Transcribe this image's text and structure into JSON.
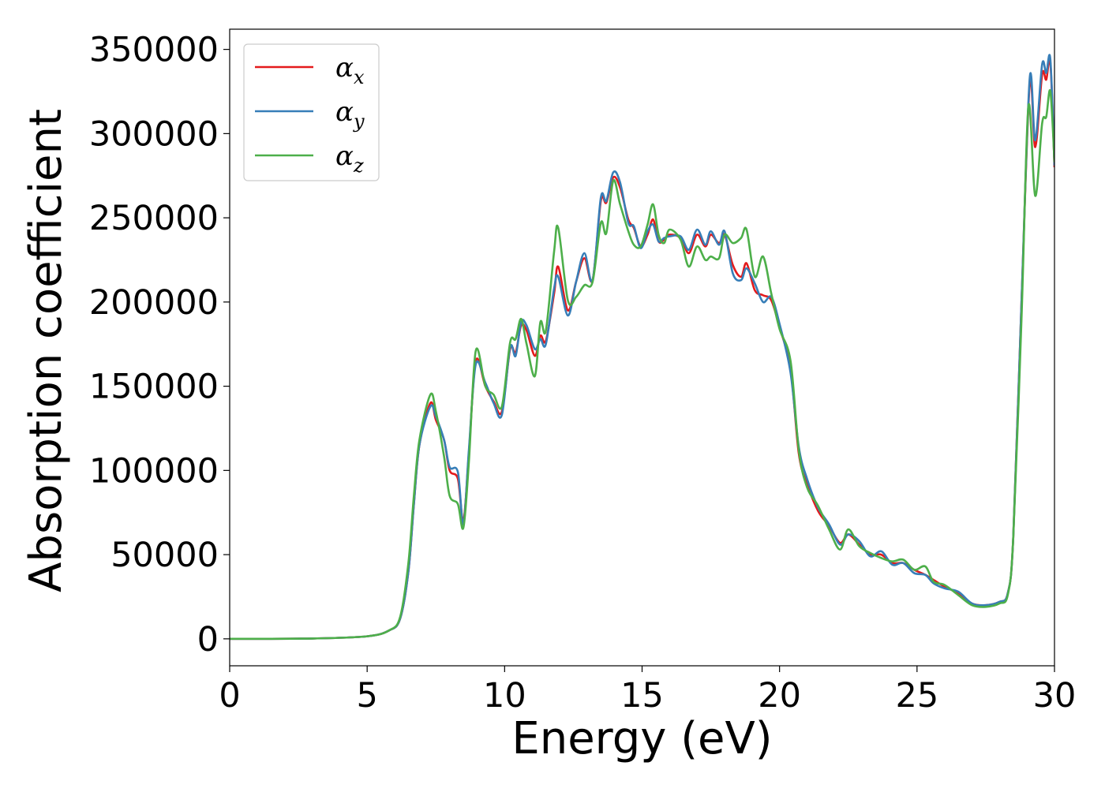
{
  "chart_data": {
    "type": "line",
    "title": "",
    "xlabel": "Energy (eV)",
    "ylabel": "Absorption coefficient",
    "xlim": [
      0,
      30
    ],
    "ylim": [
      -16000,
      362000
    ],
    "x_ticks": [
      0,
      5,
      10,
      15,
      20,
      25,
      30
    ],
    "x_tick_labels": [
      "0",
      "5",
      "10",
      "15",
      "20",
      "25",
      "30"
    ],
    "y_ticks": [
      0,
      50000,
      100000,
      150000,
      200000,
      250000,
      300000,
      350000
    ],
    "y_tick_labels": [
      "0",
      "50000",
      "100000",
      "150000",
      "200000",
      "250000",
      "300000",
      "350000"
    ],
    "grid": false,
    "legend_position": "top-left",
    "series": [
      {
        "name": "α",
        "subscript": "x",
        "color": "#e41a1c",
        "points": [
          [
            0,
            0
          ],
          [
            3,
            200
          ],
          [
            5,
            1500
          ],
          [
            5.8,
            5000
          ],
          [
            6.2,
            12000
          ],
          [
            6.5,
            40000
          ],
          [
            6.7,
            80000
          ],
          [
            6.9,
            115000
          ],
          [
            7.3,
            140000
          ],
          [
            7.5,
            130000
          ],
          [
            7.8,
            118000
          ],
          [
            8,
            100000
          ],
          [
            8.3,
            95000
          ],
          [
            8.5,
            70000
          ],
          [
            8.7,
            110000
          ],
          [
            8.95,
            165000
          ],
          [
            9.3,
            150000
          ],
          [
            9.6,
            141000
          ],
          [
            9.9,
            135000
          ],
          [
            10.2,
            172000
          ],
          [
            10.4,
            170000
          ],
          [
            10.6,
            186000
          ],
          [
            10.8,
            183000
          ],
          [
            11.1,
            168000
          ],
          [
            11.3,
            180000
          ],
          [
            11.5,
            177000
          ],
          [
            11.8,
            205000
          ],
          [
            11.95,
            221000
          ],
          [
            12.3,
            195000
          ],
          [
            12.6,
            212000
          ],
          [
            12.9,
            226000
          ],
          [
            13.2,
            213000
          ],
          [
            13.5,
            260000
          ],
          [
            13.7,
            259000
          ],
          [
            13.95,
            274000
          ],
          [
            14.2,
            268000
          ],
          [
            14.5,
            249000
          ],
          [
            14.7,
            244000
          ],
          [
            14.95,
            233000
          ],
          [
            15.2,
            240000
          ],
          [
            15.4,
            249000
          ],
          [
            15.6,
            236000
          ],
          [
            15.8,
            237000
          ],
          [
            16,
            240000
          ],
          [
            16.4,
            238000
          ],
          [
            16.7,
            229000
          ],
          [
            17,
            240000
          ],
          [
            17.3,
            233000
          ],
          [
            17.5,
            240000
          ],
          [
            17.8,
            235000
          ],
          [
            18,
            240000
          ],
          [
            18.3,
            222000
          ],
          [
            18.6,
            215000
          ],
          [
            18.8,
            223000
          ],
          [
            19.1,
            207000
          ],
          [
            19.4,
            204000
          ],
          [
            19.7,
            201000
          ],
          [
            20,
            185000
          ],
          [
            20.4,
            160000
          ],
          [
            20.7,
            110000
          ],
          [
            21,
            92000
          ],
          [
            21.4,
            76000
          ],
          [
            21.8,
            67000
          ],
          [
            22.2,
            57000
          ],
          [
            22.5,
            62000
          ],
          [
            22.9,
            56000
          ],
          [
            23.3,
            50000
          ],
          [
            23.7,
            50000
          ],
          [
            24.1,
            45000
          ],
          [
            24.5,
            45000
          ],
          [
            24.9,
            41000
          ],
          [
            25.3,
            38000
          ],
          [
            25.6,
            35000
          ],
          [
            26,
            31000
          ],
          [
            26.5,
            27000
          ],
          [
            27,
            21000
          ],
          [
            27.5,
            20000
          ],
          [
            28,
            22000
          ],
          [
            28.3,
            27000
          ],
          [
            28.5,
            60000
          ],
          [
            28.8,
            200000
          ],
          [
            29.1,
            330000
          ],
          [
            29.3,
            292000
          ],
          [
            29.55,
            335000
          ],
          [
            29.7,
            332000
          ],
          [
            29.85,
            342000
          ],
          [
            30,
            280000
          ]
        ]
      },
      {
        "name": "α",
        "subscript": "y",
        "color": "#377eb8",
        "points": [
          [
            0,
            0
          ],
          [
            3,
            200
          ],
          [
            5,
            1500
          ],
          [
            5.8,
            5000
          ],
          [
            6.2,
            12000
          ],
          [
            6.5,
            40000
          ],
          [
            6.7,
            80000
          ],
          [
            6.9,
            115000
          ],
          [
            7.3,
            138000
          ],
          [
            7.5,
            132000
          ],
          [
            7.8,
            118000
          ],
          [
            8,
            102000
          ],
          [
            8.3,
            99000
          ],
          [
            8.5,
            68000
          ],
          [
            8.7,
            112000
          ],
          [
            8.95,
            163000
          ],
          [
            9.3,
            152000
          ],
          [
            9.6,
            140000
          ],
          [
            9.9,
            133000
          ],
          [
            10.2,
            173000
          ],
          [
            10.4,
            168000
          ],
          [
            10.6,
            188000
          ],
          [
            10.8,
            186000
          ],
          [
            11.1,
            172000
          ],
          [
            11.3,
            178000
          ],
          [
            11.5,
            175000
          ],
          [
            11.8,
            208000
          ],
          [
            11.95,
            215000
          ],
          [
            12.3,
            192000
          ],
          [
            12.6,
            212000
          ],
          [
            12.9,
            229000
          ],
          [
            13.2,
            213000
          ],
          [
            13.5,
            262000
          ],
          [
            13.7,
            260000
          ],
          [
            13.95,
            277000
          ],
          [
            14.2,
            271000
          ],
          [
            14.5,
            247000
          ],
          [
            14.7,
            245000
          ],
          [
            14.95,
            232000
          ],
          [
            15.2,
            242000
          ],
          [
            15.4,
            246000
          ],
          [
            15.6,
            236000
          ],
          [
            15.8,
            238000
          ],
          [
            16,
            239000
          ],
          [
            16.4,
            239000
          ],
          [
            16.7,
            231000
          ],
          [
            17,
            243000
          ],
          [
            17.3,
            234000
          ],
          [
            17.5,
            242000
          ],
          [
            17.8,
            234000
          ],
          [
            18,
            242000
          ],
          [
            18.3,
            217000
          ],
          [
            18.6,
            213000
          ],
          [
            18.8,
            220000
          ],
          [
            19.1,
            211000
          ],
          [
            19.4,
            200000
          ],
          [
            19.7,
            203000
          ],
          [
            20,
            187000
          ],
          [
            20.4,
            158000
          ],
          [
            20.7,
            114000
          ],
          [
            21,
            95000
          ],
          [
            21.4,
            78000
          ],
          [
            21.8,
            68000
          ],
          [
            22.2,
            56000
          ],
          [
            22.5,
            62000
          ],
          [
            22.9,
            58000
          ],
          [
            23.3,
            49000
          ],
          [
            23.7,
            52000
          ],
          [
            24.1,
            44000
          ],
          [
            24.5,
            45000
          ],
          [
            24.9,
            39000
          ],
          [
            25.3,
            38000
          ],
          [
            25.6,
            33000
          ],
          [
            26,
            30000
          ],
          [
            26.5,
            28000
          ],
          [
            27,
            21000
          ],
          [
            27.5,
            20000
          ],
          [
            28,
            22000
          ],
          [
            28.3,
            27000
          ],
          [
            28.5,
            60000
          ],
          [
            28.8,
            200000
          ],
          [
            29.1,
            333000
          ],
          [
            29.3,
            296000
          ],
          [
            29.55,
            341000
          ],
          [
            29.7,
            336000
          ],
          [
            29.85,
            344000
          ],
          [
            30,
            281000
          ]
        ]
      },
      {
        "name": "α",
        "subscript": "z",
        "color": "#4daf4a",
        "points": [
          [
            0,
            0
          ],
          [
            3,
            200
          ],
          [
            5,
            1500
          ],
          [
            5.8,
            5000
          ],
          [
            6.2,
            13000
          ],
          [
            6.5,
            45000
          ],
          [
            6.7,
            85000
          ],
          [
            6.9,
            118000
          ],
          [
            7.3,
            145000
          ],
          [
            7.5,
            135000
          ],
          [
            7.8,
            108000
          ],
          [
            8,
            85000
          ],
          [
            8.3,
            80000
          ],
          [
            8.5,
            66000
          ],
          [
            8.7,
            105000
          ],
          [
            8.95,
            171000
          ],
          [
            9.3,
            150000
          ],
          [
            9.6,
            145000
          ],
          [
            9.9,
            138000
          ],
          [
            10.2,
            176000
          ],
          [
            10.4,
            178000
          ],
          [
            10.6,
            190000
          ],
          [
            10.8,
            175000
          ],
          [
            11.1,
            156000
          ],
          [
            11.3,
            188000
          ],
          [
            11.5,
            183000
          ],
          [
            11.8,
            230000
          ],
          [
            11.95,
            244000
          ],
          [
            12.3,
            201000
          ],
          [
            12.6,
            203000
          ],
          [
            12.9,
            210000
          ],
          [
            13.2,
            212000
          ],
          [
            13.5,
            247000
          ],
          [
            13.7,
            241000
          ],
          [
            13.95,
            272000
          ],
          [
            14.2,
            258000
          ],
          [
            14.5,
            242000
          ],
          [
            14.7,
            234000
          ],
          [
            14.95,
            233000
          ],
          [
            15.2,
            246000
          ],
          [
            15.4,
            258000
          ],
          [
            15.6,
            240000
          ],
          [
            15.8,
            235000
          ],
          [
            16,
            243000
          ],
          [
            16.4,
            237000
          ],
          [
            16.7,
            221000
          ],
          [
            17,
            233000
          ],
          [
            17.3,
            225000
          ],
          [
            17.5,
            227000
          ],
          [
            17.8,
            226000
          ],
          [
            18,
            240000
          ],
          [
            18.3,
            235000
          ],
          [
            18.6,
            238000
          ],
          [
            18.8,
            243000
          ],
          [
            19.1,
            215000
          ],
          [
            19.4,
            227000
          ],
          [
            19.7,
            205000
          ],
          [
            20,
            184000
          ],
          [
            20.4,
            165000
          ],
          [
            20.7,
            112000
          ],
          [
            21,
            90000
          ],
          [
            21.4,
            79000
          ],
          [
            21.8,
            65000
          ],
          [
            22.2,
            53000
          ],
          [
            22.5,
            65000
          ],
          [
            22.9,
            55000
          ],
          [
            23.3,
            51000
          ],
          [
            23.7,
            48000
          ],
          [
            24.1,
            46000
          ],
          [
            24.5,
            47000
          ],
          [
            24.9,
            41000
          ],
          [
            25.3,
            43000
          ],
          [
            25.6,
            34000
          ],
          [
            26,
            32000
          ],
          [
            26.5,
            26000
          ],
          [
            27,
            20000
          ],
          [
            27.5,
            19000
          ],
          [
            28,
            21000
          ],
          [
            28.3,
            26000
          ],
          [
            28.5,
            60000
          ],
          [
            28.8,
            190000
          ],
          [
            29.05,
            316000
          ],
          [
            29.3,
            263000
          ],
          [
            29.55,
            306000
          ],
          [
            29.7,
            310000
          ],
          [
            29.85,
            325000
          ],
          [
            30,
            283000
          ]
        ]
      }
    ]
  }
}
